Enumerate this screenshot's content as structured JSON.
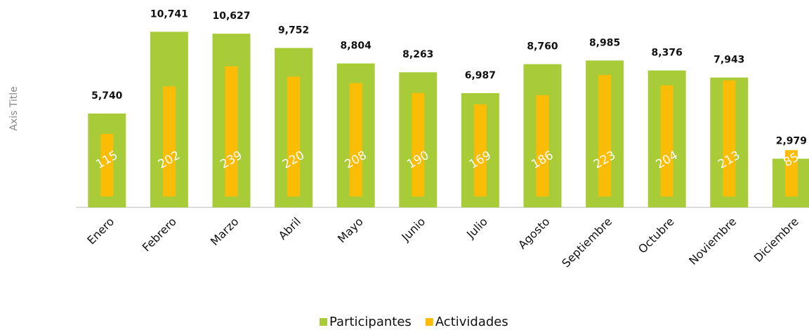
{
  "chart_data": {
    "type": "bar",
    "y_axis_label": "Axis Title",
    "categories": [
      "Enero",
      "Febrero",
      "Marzo",
      "Abril",
      "Mayo",
      "Junio",
      "Julio",
      "Agosto",
      "Septiembre",
      "Octubre",
      "Noviembre",
      "Diciembre"
    ],
    "series": [
      {
        "name": "Participantes",
        "color": "#a8cc38",
        "values": [
          5740,
          10741,
          10627,
          9752,
          8804,
          8263,
          6987,
          8760,
          8985,
          8376,
          7943,
          2979
        ],
        "value_labels": [
          "5,740",
          "10,741",
          "10,627",
          "9,752",
          "8,804",
          "8,263",
          "6,987",
          "8,760",
          "8,985",
          "8,376",
          "7,943",
          "2,979"
        ]
      },
      {
        "name": "Actividades",
        "color": "#fbbc05",
        "axis": "y2",
        "values": [
          115,
          202,
          239,
          220,
          208,
          190,
          169,
          186,
          223,
          204,
          213,
          85
        ]
      }
    ],
    "ylim": [
      0,
      12000
    ],
    "y2lim": [
      -20,
      340
    ],
    "legend": "bottom"
  }
}
